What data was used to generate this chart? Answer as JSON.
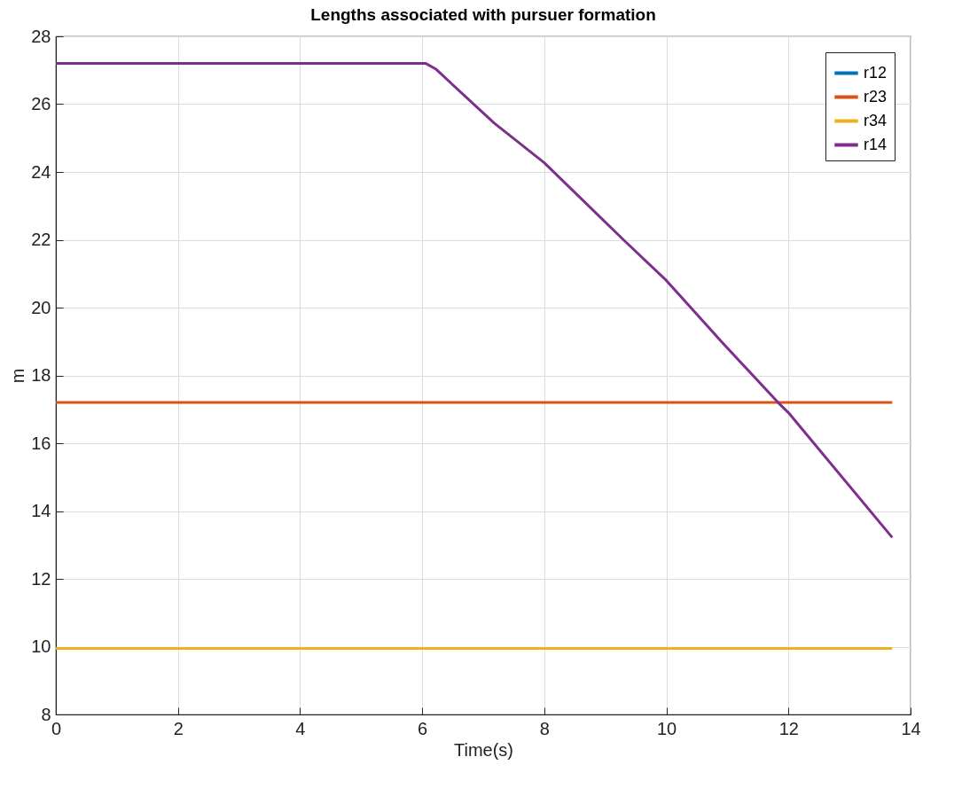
{
  "chart_data": {
    "type": "line",
    "title": "Lengths associated with pursuer formation",
    "xlabel": "Time(s)",
    "ylabel": "m",
    "xlim": [
      0,
      14
    ],
    "xticks": [
      0,
      2,
      4,
      6,
      8,
      10,
      12,
      14
    ],
    "ylim": [
      8,
      28
    ],
    "yticks": [
      8,
      10,
      12,
      14,
      16,
      18,
      20,
      22,
      24,
      26,
      28
    ],
    "grid": true,
    "legend": "top right",
    "series": [
      {
        "name": "r12",
        "color": "#0072bd"
      },
      {
        "name": "r23",
        "color": "#d95319",
        "x": [
          0,
          13.7
        ],
        "values": [
          17.2,
          17.2
        ]
      },
      {
        "name": "r34",
        "color": "#edb120",
        "x": [
          0,
          13.7
        ],
        "values": [
          9.95,
          9.95
        ]
      },
      {
        "name": "r14",
        "color": "#7e2f8e",
        "x": [
          0,
          6.06,
          6.22,
          7.18,
          8,
          9.32,
          10,
          10.92,
          11.83,
          12,
          13.7
        ],
        "values": [
          27.2,
          27.2,
          27.04,
          25.44,
          24.27,
          21.96,
          20.8,
          18.96,
          17.2,
          16.9,
          13.22
        ]
      }
    ]
  }
}
